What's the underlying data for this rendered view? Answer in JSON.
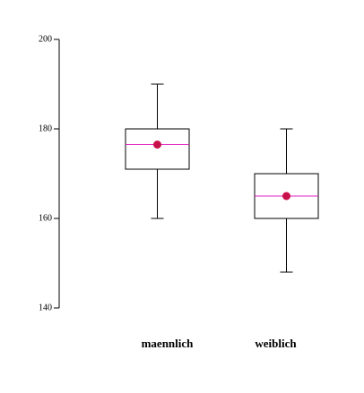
{
  "chart_data": {
    "type": "box",
    "categories": [
      "maennlich",
      "weiblich"
    ],
    "whisker_low": [
      160,
      148
    ],
    "q1": [
      171,
      160
    ],
    "median": [
      176.5,
      165
    ],
    "q3": [
      180,
      170
    ],
    "whisker_high": [
      190,
      180
    ],
    "mean": [
      176.5,
      165
    ],
    "box_color": "#000000",
    "median_color": "#e020c0",
    "mean_color": "#c8104a",
    "ylim": [
      140,
      200
    ],
    "yticks": [
      140,
      160,
      180,
      200
    ]
  }
}
